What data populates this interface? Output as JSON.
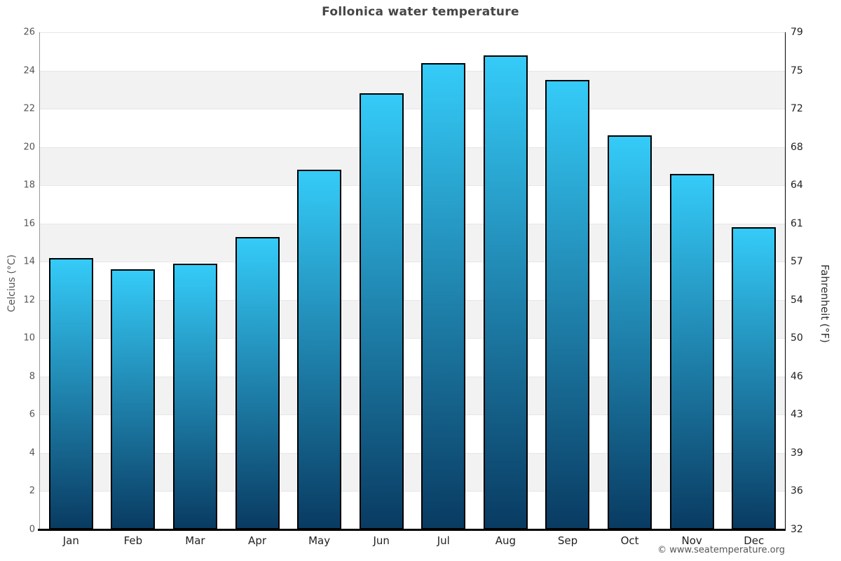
{
  "chart_data": {
    "type": "bar",
    "title": "Follonica water temperature",
    "categories": [
      "Jan",
      "Feb",
      "Mar",
      "Apr",
      "May",
      "Jun",
      "Jul",
      "Aug",
      "Sep",
      "Oct",
      "Nov",
      "Dec"
    ],
    "values": [
      14.2,
      13.6,
      13.9,
      15.3,
      18.8,
      22.8,
      24.4,
      24.8,
      23.5,
      20.6,
      18.6,
      15.8
    ],
    "series_name": "Water temperature",
    "ylabel_left": "Celcius (°C)",
    "ylabel_right": "Fahrenheit (°F)",
    "ylim": [
      0,
      26
    ],
    "ytick_step": 2,
    "yticks_celsius": [
      26,
      24,
      22,
      20,
      18,
      16,
      14,
      12,
      10,
      8,
      6,
      4,
      2,
      0
    ],
    "yticks_fahrenheit": [
      79,
      75,
      72,
      68,
      64,
      61,
      57,
      54,
      50,
      46,
      43,
      39,
      36,
      32
    ],
    "grid": "alternating-bands",
    "legend": "none",
    "colors": {
      "bar_top": "#35cbf8",
      "bar_bottom": "#093b62",
      "bar_border": "#000000",
      "band_fill": "#f2f2f2",
      "gridline": "#e6e6e6",
      "title_text": "#454545",
      "left_tick_text": "#555555",
      "right_tick_text": "#222222",
      "axis_left_line": "#999999",
      "axis_bottom_line": "#000000"
    }
  },
  "footer": {
    "copyright": "© www.seatemperature.org"
  }
}
